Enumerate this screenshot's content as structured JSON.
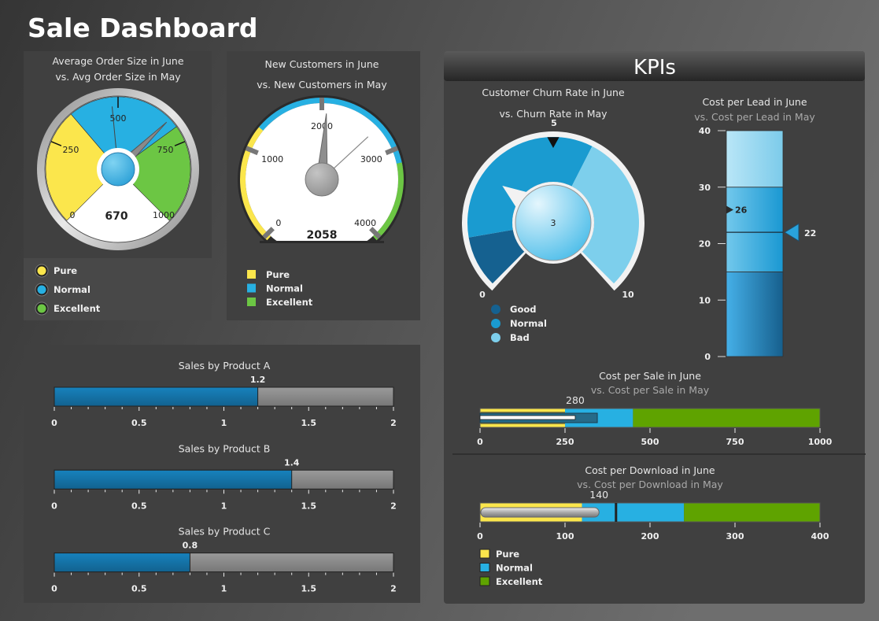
{
  "title": "Sale Dashboard",
  "kpi_header": "KPIs",
  "colors": {
    "pure": "#fbe64c",
    "normal": "#27b0e2",
    "excellent": "#6cc644",
    "excellent_dark": "#5fa300",
    "good": "#156190",
    "churn_normal": "#1a9bd0",
    "bad": "#7dcfec",
    "progress": "#1673a8",
    "remaining": "#8a8a8a"
  },
  "avg_order": {
    "title1": "Average Order Size in June",
    "title2": "vs. Avg Order Size in May",
    "range": [
      0,
      1000
    ],
    "ticks": [
      "0",
      "250",
      "500",
      "750",
      "1000"
    ],
    "tick_values": [
      0,
      250,
      500,
      750,
      1000
    ],
    "value": 670,
    "value_label": "670",
    "previous": 480,
    "bands": [
      {
        "from": 0,
        "to": 350
      },
      {
        "from": 350,
        "to": 700
      },
      {
        "from": 700,
        "to": 1000
      }
    ],
    "legend": [
      "Pure",
      "Normal",
      "Excellent"
    ]
  },
  "new_customers": {
    "title1": "New Customers in June",
    "title2": "vs. New Customers in May",
    "range": [
      0,
      4000
    ],
    "ticks": [
      "0",
      "1000",
      "2000",
      "3000",
      "4000"
    ],
    "tick_values": [
      0,
      1000,
      2000,
      3000,
      4000
    ],
    "value": 2058,
    "value_label": "2058",
    "previous": 2700,
    "bands": [
      {
        "from": 0,
        "to": 1300
      },
      {
        "from": 1300,
        "to": 3200
      },
      {
        "from": 3200,
        "to": 4000
      }
    ],
    "legend": [
      "Pure",
      "Normal",
      "Excellent"
    ]
  },
  "sales_products": [
    {
      "title": "Sales by Product A",
      "value": 1.2,
      "value_label": "1.2"
    },
    {
      "title": "Sales by Product B",
      "value": 1.4,
      "value_label": "1.4"
    },
    {
      "title": "Sales by Product C",
      "value": 0.8,
      "value_label": "0.8"
    }
  ],
  "sales_axis": {
    "range": [
      0,
      2
    ],
    "ticks": [
      "0",
      "0.5",
      "1",
      "1.5",
      "2"
    ],
    "tick_values": [
      0,
      0.5,
      1,
      1.5,
      2
    ],
    "minor_step": 0.1
  },
  "churn": {
    "title1": "Customer Churn Rate in June",
    "title2": "vs. Churn Rate in May",
    "range": [
      0,
      10
    ],
    "min_label": "0",
    "max_label": "10",
    "value": 3,
    "value_label": "3",
    "previous": 5,
    "previous_label": "5",
    "bands": [
      {
        "from": 0,
        "to": 1.3
      },
      {
        "from": 1.3,
        "to": 6.0
      },
      {
        "from": 6.0,
        "to": 10
      }
    ],
    "legend": [
      "Good",
      "Normal",
      "Bad"
    ]
  },
  "cost_per_lead": {
    "title1": "Cost per Lead in June",
    "title2": "vs. Cost per Lead in May",
    "range": [
      0,
      40
    ],
    "ticks": [
      "0",
      "10",
      "20",
      "30",
      "40"
    ],
    "tick_values": [
      0,
      10,
      20,
      30,
      40
    ],
    "bands": [
      {
        "from": 0,
        "to": 15
      },
      {
        "from": 15,
        "to": 30
      },
      {
        "from": 30,
        "to": 40
      }
    ],
    "value": 22,
    "value_label": "22",
    "previous": 26,
    "previous_label": "26"
  },
  "cost_per_sale": {
    "title1": "Cost per Sale in June",
    "title2": "vs. Cost per Sale in May",
    "range": [
      0,
      1000
    ],
    "ticks": [
      "0",
      "250",
      "500",
      "750",
      "1000"
    ],
    "tick_values": [
      0,
      250,
      500,
      750,
      1000
    ],
    "bands": [
      {
        "from": 0,
        "to": 250
      },
      {
        "from": 250,
        "to": 450
      },
      {
        "from": 450,
        "to": 1000
      }
    ],
    "value": 280,
    "value_label": "280",
    "previous": 345
  },
  "cost_per_download": {
    "title1": "Cost per Download in June",
    "title2": "vs. Cost per Download in May",
    "range": [
      0,
      400
    ],
    "ticks": [
      "0",
      "100",
      "200",
      "300",
      "400"
    ],
    "tick_values": [
      0,
      100,
      200,
      300,
      400
    ],
    "bands": [
      {
        "from": 0,
        "to": 120
      },
      {
        "from": 120,
        "to": 240
      },
      {
        "from": 240,
        "to": 400
      }
    ],
    "value": 140,
    "value_label": "140",
    "target": 160
  },
  "kpi_legend": [
    "Pure",
    "Normal",
    "Excellent"
  ]
}
